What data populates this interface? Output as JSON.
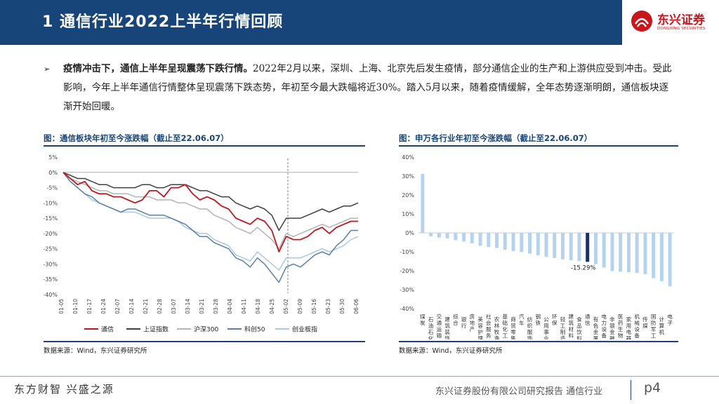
{
  "header": {
    "title": "1  通信行业2022上半年行情回顾",
    "logo_text": "东兴证券",
    "logo_subtext": "DONGXING SECURITIES",
    "colors": {
      "bar": "#17457a",
      "logo": "#c8161d"
    }
  },
  "body": {
    "bullet_icon": "arrow-bullet",
    "bold_lead": "疫情冲击下，通信上半年呈现震荡下跌行情。",
    "text": "2022年2月以来，深圳、上海、北京先后发生疫情，部分通信企业的生产和上游供应受到冲击。受此影响，今年上半年通信行情整体呈现震荡下跌态势，年初至今最大跌幅将近30%。踏入5月以来，随着疫情缓解，全年态势逐渐明朗，通信板块逐渐开始回暖。"
  },
  "left_chart": {
    "title": "图：通信板块年初至今涨跌幅（截止至22.06.07）",
    "source": "数据来源：Wind，东兴证券研究所"
  },
  "right_chart": {
    "title": "图：申万各行业年初至今涨跌幅（截止至22.06.07）",
    "source": "数据来源：Wind，东兴证券研究所"
  },
  "footer": {
    "slogan": "东方财智  兴盛之源",
    "report": "东兴证券股份有限公司研究报告 通信行业",
    "page": "p4"
  },
  "chart_data": [
    {
      "type": "line",
      "title": "图：通信板块年初至今涨跌幅（截止至22.06.07）",
      "x_ticks": [
        "01-05",
        "01-10",
        "01-17",
        "01-24",
        "02-07",
        "02-14",
        "02-21",
        "02-28",
        "03-07",
        "03-14",
        "03-21",
        "03-28",
        "04-04",
        "04-11",
        "04-18",
        "04-25",
        "05-02",
        "05-09",
        "05-16",
        "05-23",
        "05-30",
        "06-06"
      ],
      "ylim": [
        -40,
        5
      ],
      "y_ticks": [
        "5%",
        "0%",
        "-5%",
        "-10%",
        "-15%",
        "-20%",
        "-25%",
        "-30%",
        "-35%",
        "-40%"
      ],
      "dashed_marker_x": "05-02",
      "grid": false,
      "legend_position": "bottom",
      "series": [
        {
          "name": "通信",
          "color": "#c0161d",
          "values": [
            0,
            -2,
            -4,
            -3,
            -6,
            -7,
            -7,
            -8,
            -8,
            -9,
            -10,
            -9,
            -6,
            -6,
            -8,
            -5,
            -5,
            -4,
            -7,
            -9,
            -8,
            -9,
            -11,
            -12,
            -15,
            -16,
            -17,
            -15,
            -16,
            -19,
            -26,
            -21,
            -22,
            -22,
            -21,
            -19,
            -18,
            -20,
            -18,
            -17,
            -16,
            -16
          ]
        },
        {
          "name": "上证指数",
          "color": "#404040",
          "values": [
            0,
            -1,
            -2,
            -2,
            -3,
            -4,
            -4,
            -5,
            -5,
            -5,
            -5,
            -4,
            -4,
            -5,
            -5,
            -4,
            -4,
            -4,
            -5,
            -6,
            -6,
            -7,
            -8,
            -8,
            -10,
            -11,
            -12,
            -11,
            -12,
            -14,
            -19,
            -15,
            -15,
            -15,
            -14,
            -13,
            -12,
            -13,
            -12,
            -11,
            -11,
            -10
          ]
        },
        {
          "name": "沪深300",
          "color": "#b4b4b4",
          "values": [
            0,
            -2,
            -3,
            -4,
            -5,
            -6,
            -6,
            -7,
            -7,
            -7,
            -8,
            -8,
            -8,
            -9,
            -9,
            -9,
            -10,
            -10,
            -11,
            -12,
            -12,
            -14,
            -15,
            -16,
            -18,
            -19,
            -20,
            -18,
            -20,
            -22,
            -25,
            -20,
            -21,
            -20,
            -19,
            -18,
            -17,
            -18,
            -17,
            -16,
            -15,
            -15
          ]
        },
        {
          "name": "科创50",
          "color": "#5b7fa6",
          "values": [
            0,
            -3,
            -5,
            -7,
            -8,
            -10,
            -11,
            -12,
            -13,
            -12,
            -12,
            -13,
            -14,
            -14,
            -14,
            -15,
            -16,
            -17,
            -19,
            -21,
            -21,
            -23,
            -24,
            -25,
            -28,
            -29,
            -31,
            -28,
            -30,
            -33,
            -36,
            -31,
            -30,
            -31,
            -29,
            -27,
            -26,
            -27,
            -24,
            -22,
            -19,
            -19
          ]
        },
        {
          "name": "创业板指",
          "color": "#aac8e8",
          "values": [
            0,
            -3,
            -5,
            -7,
            -9,
            -10,
            -11,
            -12,
            -13,
            -13,
            -13,
            -14,
            -15,
            -15,
            -15,
            -15,
            -16,
            -18,
            -19,
            -20,
            -20,
            -22,
            -23,
            -24,
            -27,
            -28,
            -29,
            -26,
            -28,
            -30,
            -32,
            -28,
            -28,
            -28,
            -27,
            -26,
            -25,
            -26,
            -25,
            -24,
            -22,
            -21
          ]
        }
      ]
    },
    {
      "type": "bar",
      "title": "图：申万各行业年初至今涨跌幅（截止至22.06.07）",
      "ylim": [
        -40,
        40
      ],
      "y_ticks": [
        "40%",
        "30%",
        "20%",
        "10%",
        "0%",
        "-10%",
        "-20%",
        "-30%",
        "-40%"
      ],
      "categories": [
        "煤炭",
        "石油石化",
        "交通运输",
        "建筑装饰",
        "综合",
        "银行",
        "房地产",
        "美容护理",
        "社会服务",
        "农林牧渔",
        "基础化工",
        "商贸零售",
        "汽车",
        "纺织服饰",
        "钢铁",
        "公用事业",
        "环保",
        "轻工制造",
        "建筑材料",
        "食品饮料",
        "通信",
        "有色金属",
        "电力设备",
        "非银金融",
        "医药生物",
        "家用电器",
        "机械设备",
        "传媒",
        "国防军工",
        "计算机",
        "电子"
      ],
      "values": [
        31.2,
        -1.8,
        -2.5,
        -2.9,
        -3.8,
        -4.6,
        -5.5,
        -6.8,
        -7.5,
        -8.0,
        -8.9,
        -9.6,
        -10.1,
        -11.0,
        -11.8,
        -12.7,
        -13.3,
        -14.0,
        -14.4,
        -14.9,
        -15.29,
        -16.5,
        -18.3,
        -20.2,
        -20.5,
        -20.8,
        -21.1,
        -21.8,
        -23.9,
        -25.5,
        -28.2
      ],
      "highlight": {
        "category": "通信",
        "label": "-15.29%",
        "color": "#17315e"
      },
      "bar_color": "#b5d2ee",
      "grid": false
    }
  ]
}
